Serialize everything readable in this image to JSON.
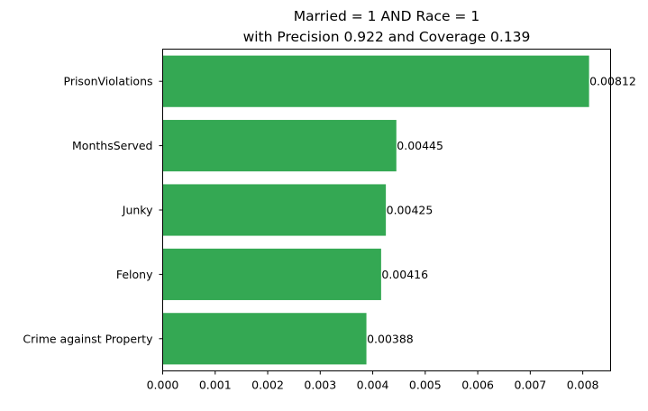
{
  "chart_data": {
    "type": "bar",
    "orientation": "horizontal",
    "title": [
      "Married = 1 AND Race = 1",
      "with Precision 0.922 and Coverage 0.139"
    ],
    "categories": [
      "PrisonViolations",
      "MonthsServed",
      "Junky",
      "Felony",
      "Crime against Property"
    ],
    "values": [
      0.00812,
      0.00445,
      0.00425,
      0.00416,
      0.00388
    ],
    "data_labels": [
      "0.00812",
      "0.00445",
      "0.00425",
      "0.00416",
      "0.00388"
    ],
    "x_ticks": [
      0.0,
      0.001,
      0.002,
      0.003,
      0.004,
      0.005,
      0.006,
      0.007,
      0.008
    ],
    "x_tick_labels": [
      "0.000",
      "0.001",
      "0.002",
      "0.003",
      "0.004",
      "0.005",
      "0.006",
      "0.007",
      "0.008"
    ],
    "xlim": [
      0,
      0.00853
    ],
    "xlabel": "",
    "ylabel": "",
    "grid": false,
    "bar_color": "#34a853"
  }
}
